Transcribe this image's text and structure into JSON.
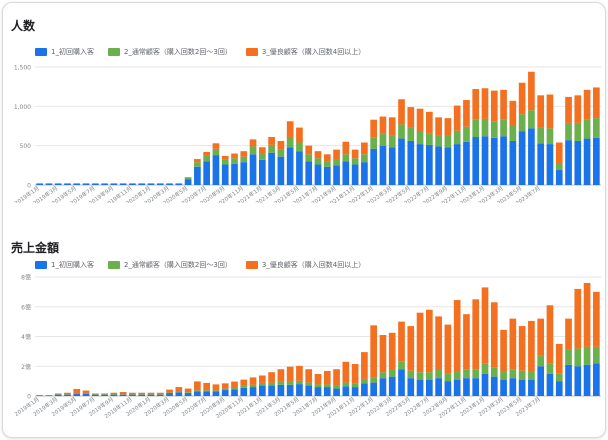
{
  "charts": [
    {
      "title": "人数",
      "chart_data": {
        "type": "bar",
        "stacked": true,
        "ylim": [
          0,
          1500
        ],
        "y_ticks": [
          "0",
          "500",
          "1,000",
          "1,500"
        ],
        "y_tick_values": [
          0,
          500,
          1000,
          1500
        ],
        "x_tick_labels": [
          "2019年1月",
          "2019年3月",
          "2019年5月",
          "2019年7月",
          "2019年9月",
          "2019年11月",
          "2020年1月",
          "2020年3月",
          "2020年5月",
          "2020年7月",
          "2020年9月",
          "2020年11月",
          "2021年1月",
          "2021年3月",
          "2021年5月",
          "2021年7月",
          "2021年9月",
          "2021年11月",
          "2022年1月",
          "2022年3月",
          "2022年5月",
          "2022年7月",
          "2022年9月",
          "2022年11月",
          "2023年1月",
          "2023年3月",
          "2023年5月",
          "2023年7月"
        ],
        "x_tick_every": 2,
        "series": [
          {
            "name": "1_初回購入客",
            "color": "#1a73e8",
            "values": [
              20,
              20,
              20,
              20,
              20,
              20,
              20,
              20,
              20,
              20,
              20,
              20,
              20,
              20,
              20,
              20,
              70,
              230,
              300,
              380,
              260,
              270,
              290,
              390,
              320,
              410,
              360,
              480,
              430,
              300,
              260,
              230,
              250,
              300,
              260,
              290,
              460,
              500,
              480,
              590,
              560,
              520,
              510,
              490,
              480,
              520,
              550,
              610,
              620,
              600,
              620,
              560,
              680,
              720,
              530,
              520,
              190,
              570,
              560,
              590,
              600
            ]
          },
          {
            "name": "2_通常顧客（購入回数2回～3回）",
            "color": "#6ab04c",
            "values": [
              0,
              0,
              0,
              0,
              0,
              0,
              0,
              0,
              0,
              0,
              0,
              0,
              0,
              0,
              0,
              0,
              20,
              60,
              70,
              80,
              60,
              70,
              70,
              100,
              80,
              100,
              90,
              130,
              110,
              90,
              80,
              70,
              80,
              90,
              80,
              100,
              140,
              150,
              150,
              180,
              170,
              160,
              150,
              140,
              150,
              170,
              190,
              220,
              220,
              210,
              210,
              190,
              220,
              230,
              200,
              200,
              90,
              220,
              230,
              240,
              250
            ]
          },
          {
            "name": "3_優良顧客（購入回数4回以上）",
            "color": "#f37021",
            "values": [
              0,
              0,
              0,
              0,
              0,
              0,
              0,
              0,
              0,
              0,
              0,
              0,
              0,
              0,
              0,
              0,
              10,
              40,
              50,
              70,
              50,
              60,
              70,
              90,
              80,
              100,
              110,
              200,
              190,
              110,
              90,
              90,
              120,
              160,
              110,
              150,
              230,
              220,
              230,
              320,
              260,
              290,
              270,
              230,
              220,
              320,
              340,
              390,
              390,
              390,
              380,
              320,
              400,
              490,
              410,
              430,
              260,
              330,
              350,
              380,
              390
            ]
          }
        ]
      }
    },
    {
      "title": "売上金額",
      "chart_data": {
        "type": "bar",
        "stacked": true,
        "ylim": [
          0,
          8
        ],
        "y_ticks": [
          "0",
          "2億",
          "4億",
          "6億",
          "8億"
        ],
        "y_tick_values": [
          0,
          2,
          4,
          6,
          8
        ],
        "x_tick_labels": [
          "2019年1月",
          "2019年3月",
          "2019年5月",
          "2019年7月",
          "2019年9月",
          "2019年11月",
          "2020年1月",
          "2020年3月",
          "2020年5月",
          "2020年7月",
          "2020年9月",
          "2020年11月",
          "2021年1月",
          "2021年3月",
          "2021年5月",
          "2021年7月",
          "2021年9月",
          "2021年11月",
          "2022年1月",
          "2022年3月",
          "2022年5月",
          "2022年7月",
          "2022年9月",
          "2022年11月",
          "2023年1月",
          "2023年3月",
          "2023年5月",
          "2023年7月"
        ],
        "x_tick_every": 2,
        "series": [
          {
            "name": "1_初回購入客",
            "color": "#1a73e8",
            "values": [
              0.05,
              0.05,
              0.1,
              0.1,
              0.15,
              0.15,
              0.1,
              0.1,
              0.1,
              0.1,
              0.1,
              0.1,
              0.1,
              0.1,
              0.2,
              0.25,
              0.2,
              0.3,
              0.3,
              0.3,
              0.4,
              0.45,
              0.55,
              0.6,
              0.7,
              0.7,
              0.75,
              0.75,
              0.8,
              0.7,
              0.6,
              0.6,
              0.5,
              0.65,
              0.6,
              0.85,
              0.9,
              1.2,
              1.3,
              1.8,
              1.2,
              1.1,
              1.1,
              1.2,
              1.0,
              1.1,
              1.2,
              1.2,
              1.5,
              1.3,
              1.1,
              1.2,
              1.1,
              1.1,
              2.0,
              1.5,
              1.0,
              2.1,
              2.0,
              2.1,
              2.2
            ]
          },
          {
            "name": "2_通常顧客（購入回数2回～3回）",
            "color": "#6ab04c",
            "values": [
              0,
              0,
              0.02,
              0.02,
              0.02,
              0.02,
              0.02,
              0.02,
              0.02,
              0.02,
              0.02,
              0.02,
              0.02,
              0.02,
              0.03,
              0.05,
              0.05,
              0.08,
              0.08,
              0.08,
              0.1,
              0.12,
              0.15,
              0.15,
              0.18,
              0.2,
              0.2,
              0.22,
              0.22,
              0.2,
              0.18,
              0.18,
              0.2,
              0.25,
              0.25,
              0.3,
              0.35,
              0.4,
              0.45,
              0.5,
              0.5,
              0.5,
              0.5,
              0.55,
              0.5,
              0.55,
              0.6,
              0.6,
              0.7,
              0.6,
              0.55,
              0.6,
              0.6,
              0.55,
              0.7,
              0.7,
              0.5,
              1.0,
              1.2,
              1.2,
              1.1
            ]
          },
          {
            "name": "3_優良顧客（購入回数4回以上）",
            "color": "#f37021",
            "values": [
              0,
              0,
              0.05,
              0.1,
              0.3,
              0.2,
              0.05,
              0.05,
              0.1,
              0.15,
              0.1,
              0.1,
              0.1,
              0.1,
              0.2,
              0.3,
              0.25,
              0.6,
              0.5,
              0.4,
              0.35,
              0.4,
              0.4,
              0.5,
              0.5,
              0.7,
              0.85,
              1.0,
              1.0,
              0.9,
              0.7,
              0.9,
              1.1,
              1.4,
              1.3,
              1.8,
              3.5,
              2.5,
              2.5,
              2.7,
              3.0,
              4.0,
              4.2,
              3.6,
              3.3,
              4.8,
              3.7,
              4.7,
              5.1,
              4.4,
              2.8,
              3.4,
              3.0,
              3.4,
              2.5,
              3.9,
              2.0,
              2.1,
              4.0,
              4.3,
              3.7
            ]
          }
        ]
      }
    }
  ]
}
